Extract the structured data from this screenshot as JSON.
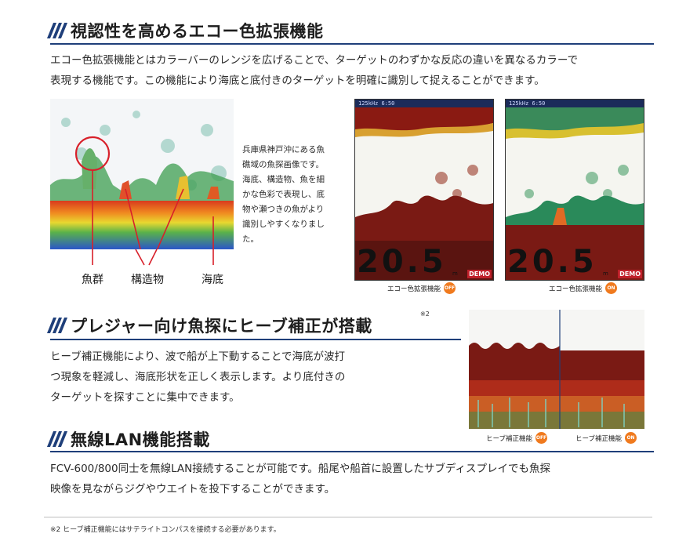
{
  "sections": [
    {
      "title": "視認性を高めるエコー色拡張機能",
      "body": [
        "エコー色拡張機能とはカラーバーのレンジを広げることで、ターゲットのわずかな反応の違いを異なるカラーで",
        "表現する機能です。この機能により海底と底付きのターゲットを明確に識別して捉えることができます。"
      ]
    },
    {
      "title": "プレジャー向け魚探にヒーブ補正が搭載",
      "title_note": "※2",
      "body": [
        "ヒーブ補正機能により、波で船が上下動することで海底が波打",
        "つ現象を軽減し、海底形状を正しく表示します。より底付きの",
        "ターゲットを探すことに集中できます。"
      ]
    },
    {
      "title": "無線LAN機能搭載",
      "body": [
        "FCV-600/800同士を無線LAN接続することが可能です。船尾や船首に設置したサブディスプレイでも魚探",
        "映像を見ながらジグやウエイトを投下することができます。"
      ]
    }
  ],
  "echo_example": {
    "labels": {
      "fish_school": "魚群",
      "structure": "構造物",
      "seabed": "海底"
    },
    "description": [
      "兵庫県神戸沖にある魚",
      "礁域の魚探画像です。",
      "海底、構造物、魚を細",
      "かな色彩で表現し、底",
      "物や瀬つきの魚がより",
      "識別しやすくなりまし",
      "た。"
    ]
  },
  "comparison_displays": [
    {
      "status": "125kHz 6:50",
      "depth": "20.5",
      "unit": "m",
      "demo": "DEMO",
      "caption": "エコー色拡張機能",
      "state": "OFF"
    },
    {
      "status": "125kHz 6:50",
      "depth": "20.5",
      "unit": "m",
      "demo": "DEMO",
      "caption": "エコー色拡張機能",
      "state": "ON"
    }
  ],
  "heave_captions": [
    {
      "caption": "ヒーブ補正機能",
      "state": "OFF"
    },
    {
      "caption": "ヒーブ補正機能",
      "state": "ON"
    }
  ],
  "footnote": "※2 ヒーブ補正機能にはサテライトコンパスを接続する必要があります。",
  "colors": {
    "accent": "#1f3f7a",
    "badge": "#f07a1e",
    "annotation": "#d8202a"
  }
}
